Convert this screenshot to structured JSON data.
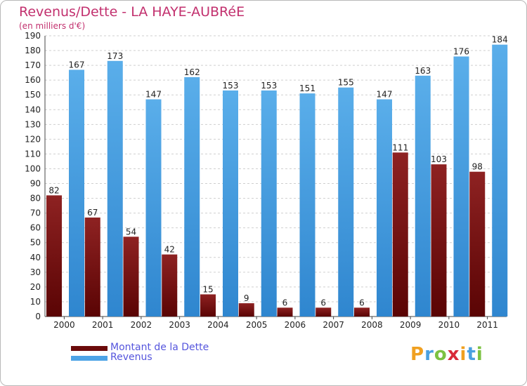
{
  "chart_data": {
    "type": "bar",
    "title": "Revenus/Dette - LA HAYE-AUBRéE",
    "subtitle": "(en milliers d'€)",
    "xlabel": "",
    "ylabel": "",
    "categories": [
      "2000",
      "2001",
      "2002",
      "2003",
      "2004",
      "2005",
      "2006",
      "2007",
      "2008",
      "2009",
      "2010",
      "2011"
    ],
    "series": [
      {
        "name": "Montant de la Dette",
        "color": "#8b1a1a",
        "values": [
          82,
          67,
          54,
          42,
          15,
          9,
          6,
          6,
          6,
          111,
          103,
          98
        ]
      },
      {
        "name": "Revenus",
        "color": "#4da3e6",
        "values": [
          167,
          173,
          147,
          162,
          153,
          153,
          151,
          155,
          147,
          163,
          176,
          184
        ]
      }
    ],
    "ylim": [
      0,
      190
    ],
    "yticks": [
      0,
      10,
      20,
      30,
      40,
      50,
      60,
      70,
      80,
      90,
      100,
      110,
      120,
      130,
      140,
      150,
      160,
      170,
      180,
      190
    ],
    "grid": true,
    "legend_position": "bottom-left"
  },
  "legend": [
    {
      "label": "Montant de la Dette",
      "color": "#6b0b0b",
      "text_color": "#5555dd"
    },
    {
      "label": "Revenus",
      "color": "#4da3e6",
      "text_color": "#5555dd"
    }
  ],
  "logo": {
    "letters": [
      "P",
      "r",
      "o",
      "x",
      "i",
      "t",
      "i"
    ],
    "colors": [
      "#f0a020",
      "#4aa0e0",
      "#7cc242",
      "#d82a3a",
      "#f0a020",
      "#4aa0e0",
      "#7cc242"
    ]
  }
}
